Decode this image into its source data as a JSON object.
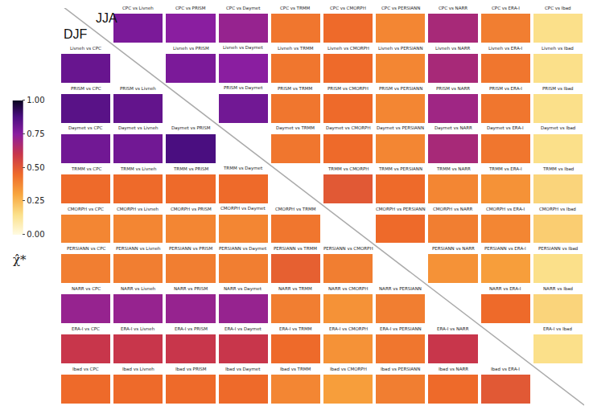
{
  "chart_data": {
    "type": "heatmap",
    "tick_labels": false,
    "labels": {
      "upper": "JJA",
      "lower": "DJF"
    },
    "colorbar": {
      "title": "χ̂*",
      "range": [
        0,
        1
      ],
      "ticks": [
        {
          "value": 0,
          "label": "0.00"
        },
        {
          "value": 0.25,
          "label": "0.25"
        },
        {
          "value": 0.5,
          "label": "0.50"
        },
        {
          "value": 0.75,
          "label": "0.75"
        },
        {
          "value": 1,
          "label": "1.00"
        }
      ]
    },
    "titles": [
      [
        null,
        "CPC vs Livneh",
        "CPC vs PRISM",
        "CPC vs Daymet",
        "CPC vs TRMM",
        "CPC vs CMORPH",
        "CPC vs PERSIANN",
        "CPC vs NARR",
        "CPC vs ERA-I",
        "CPC vs Ibad"
      ],
      [
        "Livneh vs CPC",
        null,
        "Livneh vs PRISM",
        "Livneh vs Daymet",
        "Livneh vs TRMM",
        "Livneh vs CMORPH",
        "Livneh vs PERSIANN",
        "Livneh vs NARR",
        "Livneh vs ERA-I",
        "Livneh vs Ibad"
      ],
      [
        "PRISM vs CPC",
        "PRISM vs Livneh",
        null,
        "PRISM vs Daymet",
        "PRISM vs TRMM",
        "PRISM vs CMORPH",
        "PRISM vs PERSIANN",
        "PRISM vs NARR",
        "PRISM vs ERA-I",
        "PRISM vs Ibad"
      ],
      [
        "Daymet vs CPC",
        "Daymet vs Livneh",
        "Daymet vs PRISM",
        null,
        "Daymet vs TRMM",
        "Daymet vs CMORPH",
        "Daymet vs PERSIANN",
        "Daymet vs NARR",
        "Daymet vs ERA-I",
        "Daymet vs Ibad"
      ],
      [
        "TRMM vs CPC",
        "TRMM vs Livneh",
        "TRMM vs PRISM",
        "TRMM vs Daymet",
        null,
        "TRMM vs CMORPH",
        "TRMM vs PERSIANN",
        "TRMM vs NARR",
        "TRMM vs ERA-I",
        "TRMM vs Ibad"
      ],
      [
        "CMORPH vs CPC",
        "CMORPH vs Livneh",
        "CMORPH vs PRISM",
        "CMORPH vs Daymet",
        "CMORPH vs TRMM",
        null,
        "CMORPH vs PERSIANN",
        "CMORPH vs NARR",
        "CMORPH vs ERA-I",
        "CMORPH vs Ibad"
      ],
      [
        "PERSIANN vs CPC",
        "PERSIANN vs Livneh",
        "PERSIANN vs PRISM",
        "PERSIANN vs Daymet",
        "PERSIANN vs TRMM",
        "PERSIANN vs CMORPH",
        null,
        "PERSIANN vs NARR",
        "PERSIANN vs ERA-I",
        "PERSIANN vs Ibad"
      ],
      [
        "NARR vs CPC",
        "NARR vs Livneh",
        "NARR vs PRISM",
        "NARR vs Daymet",
        "NARR vs TRMM",
        "NARR vs CMORPH",
        "NARR vs PERSIANN",
        null,
        "NARR vs ERA-I",
        "NARR vs Ibad"
      ],
      [
        "ERA-I vs CPC",
        "ERA-I vs Livneh",
        "ERA-I vs PRISM",
        "ERA-I vs Daymet",
        "ERA-I vs TRMM",
        "ERA-I vs CMORPH",
        "ERA-I vs PERSIANN",
        "ERA-I vs NARR",
        null,
        "ERA-I vs Ibad"
      ],
      [
        "Ibad vs CPC",
        "Ibad vs Livneh",
        "Ibad vs PRISM",
        "Ibad vs Daymet",
        "Ibad vs TRMM",
        "Ibad vs CMORPH",
        "Ibad vs PERSIANN",
        "Ibad vs NARR",
        "Ibad vs ERA-I",
        null
      ]
    ],
    "values": [
      [
        null,
        0.78,
        0.75,
        0.72,
        0.42,
        0.45,
        0.38,
        0.68,
        0.4,
        0.15
      ],
      [
        0.82,
        null,
        0.78,
        0.75,
        0.42,
        0.45,
        0.38,
        0.68,
        0.42,
        0.15
      ],
      [
        0.85,
        0.83,
        null,
        0.8,
        0.42,
        0.45,
        0.38,
        0.7,
        0.42,
        0.15
      ],
      [
        0.8,
        0.8,
        0.88,
        null,
        0.42,
        0.45,
        0.38,
        0.68,
        0.42,
        0.15
      ],
      [
        0.45,
        0.45,
        0.45,
        0.45,
        null,
        0.5,
        0.45,
        0.38,
        0.35,
        0.18
      ],
      [
        0.38,
        0.38,
        0.38,
        0.38,
        0.42,
        null,
        0.45,
        0.4,
        0.38,
        0.2
      ],
      [
        0.4,
        0.4,
        0.4,
        0.4,
        0.48,
        0.4,
        null,
        0.35,
        0.32,
        0.15
      ],
      [
        0.72,
        0.72,
        0.72,
        0.72,
        0.4,
        0.35,
        0.4,
        null,
        0.45,
        0.18
      ],
      [
        0.6,
        0.6,
        0.6,
        0.6,
        0.45,
        0.35,
        0.42,
        0.6,
        null,
        0.15
      ],
      [
        0.45,
        0.45,
        0.45,
        0.45,
        0.38,
        0.32,
        0.4,
        0.45,
        0.5,
        null
      ]
    ]
  }
}
